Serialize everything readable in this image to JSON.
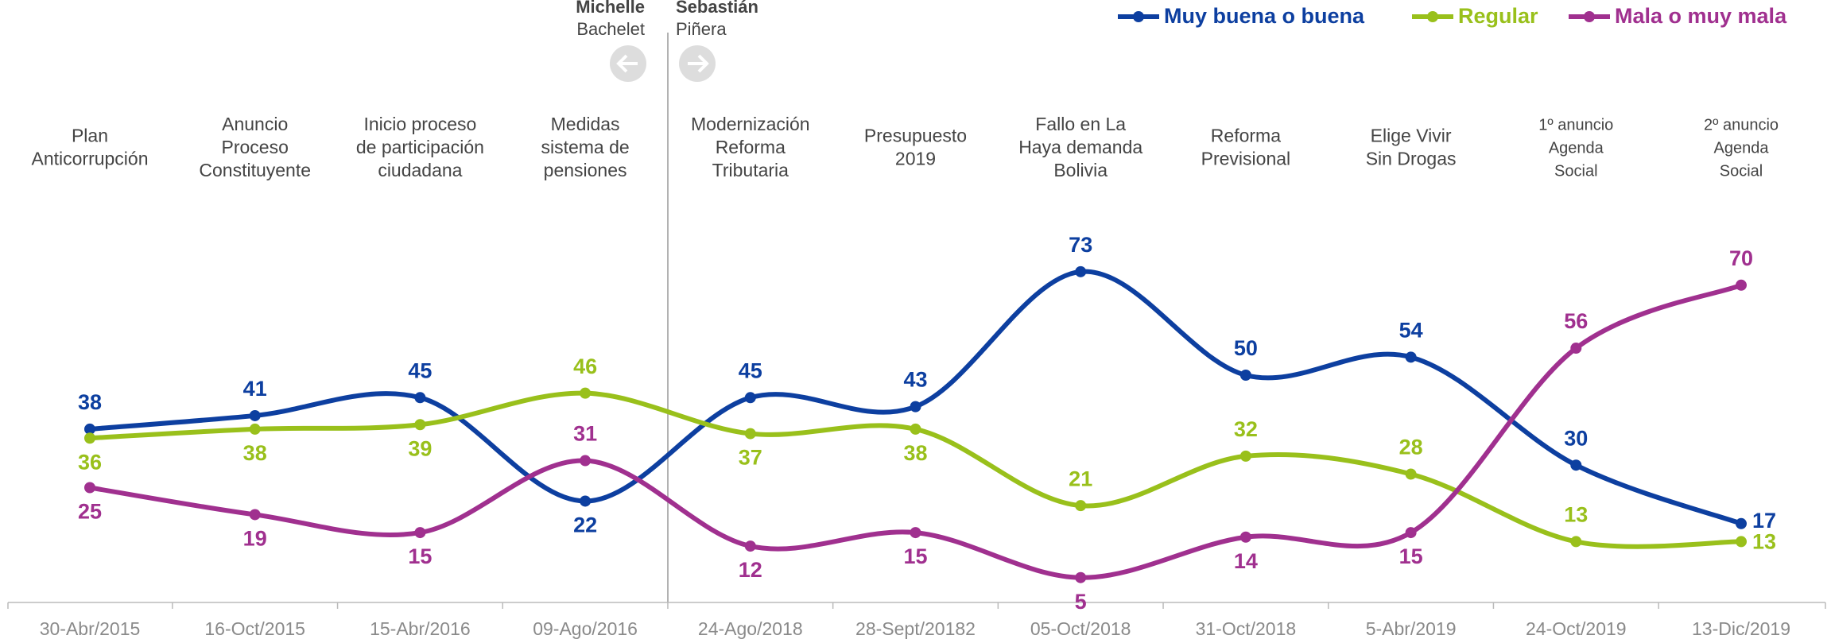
{
  "chart_data": {
    "type": "line",
    "categories": [
      "30-Abr/2015",
      "16-Oct/2015",
      "15-Abr/2016",
      "09-Ago/2016",
      "24-Ago/2018",
      "28-Sept/20182",
      "05-Oct/2018",
      "31-Oct/2018",
      "5-Abr/2019",
      "24-Oct/2019",
      "13-Dic/2019"
    ],
    "events": [
      [
        "Plan",
        "Anticorrupción"
      ],
      [
        "Anuncio",
        "Proceso",
        "Constituyente"
      ],
      [
        "Inicio proceso",
        "de participación",
        "ciudadana"
      ],
      [
        "Medidas",
        "sistema de",
        "pensiones"
      ],
      [
        "Modernización",
        "Reforma",
        "Tributaria"
      ],
      [
        "Presupuesto",
        "2019"
      ],
      [
        "Fallo en La",
        "Haya demanda",
        "Bolivia"
      ],
      [
        "Reforma",
        "Previsional"
      ],
      [
        "Elige Vivir",
        "Sin Drogas"
      ],
      [
        "1º anuncio",
        "Agenda",
        "Social"
      ],
      [
        "2º anuncio",
        "Agenda",
        "Social"
      ]
    ],
    "divider": {
      "left": [
        "Michelle",
        "Bachelet"
      ],
      "right": [
        "Sebastián",
        "Piñera"
      ]
    },
    "series": [
      {
        "name": "Muy buena o buena",
        "color": "#0d3fa0",
        "values": [
          38,
          41,
          45,
          22,
          45,
          43,
          73,
          50,
          54,
          30,
          17
        ]
      },
      {
        "name": "Regular",
        "color": "#99c01b",
        "values": [
          36,
          38,
          39,
          46,
          37,
          38,
          21,
          32,
          28,
          13,
          13
        ]
      },
      {
        "name": "Mala o muy mala",
        "color": "#a0308f",
        "values": [
          25,
          19,
          15,
          31,
          12,
          15,
          5,
          14,
          15,
          56,
          70
        ]
      }
    ]
  }
}
